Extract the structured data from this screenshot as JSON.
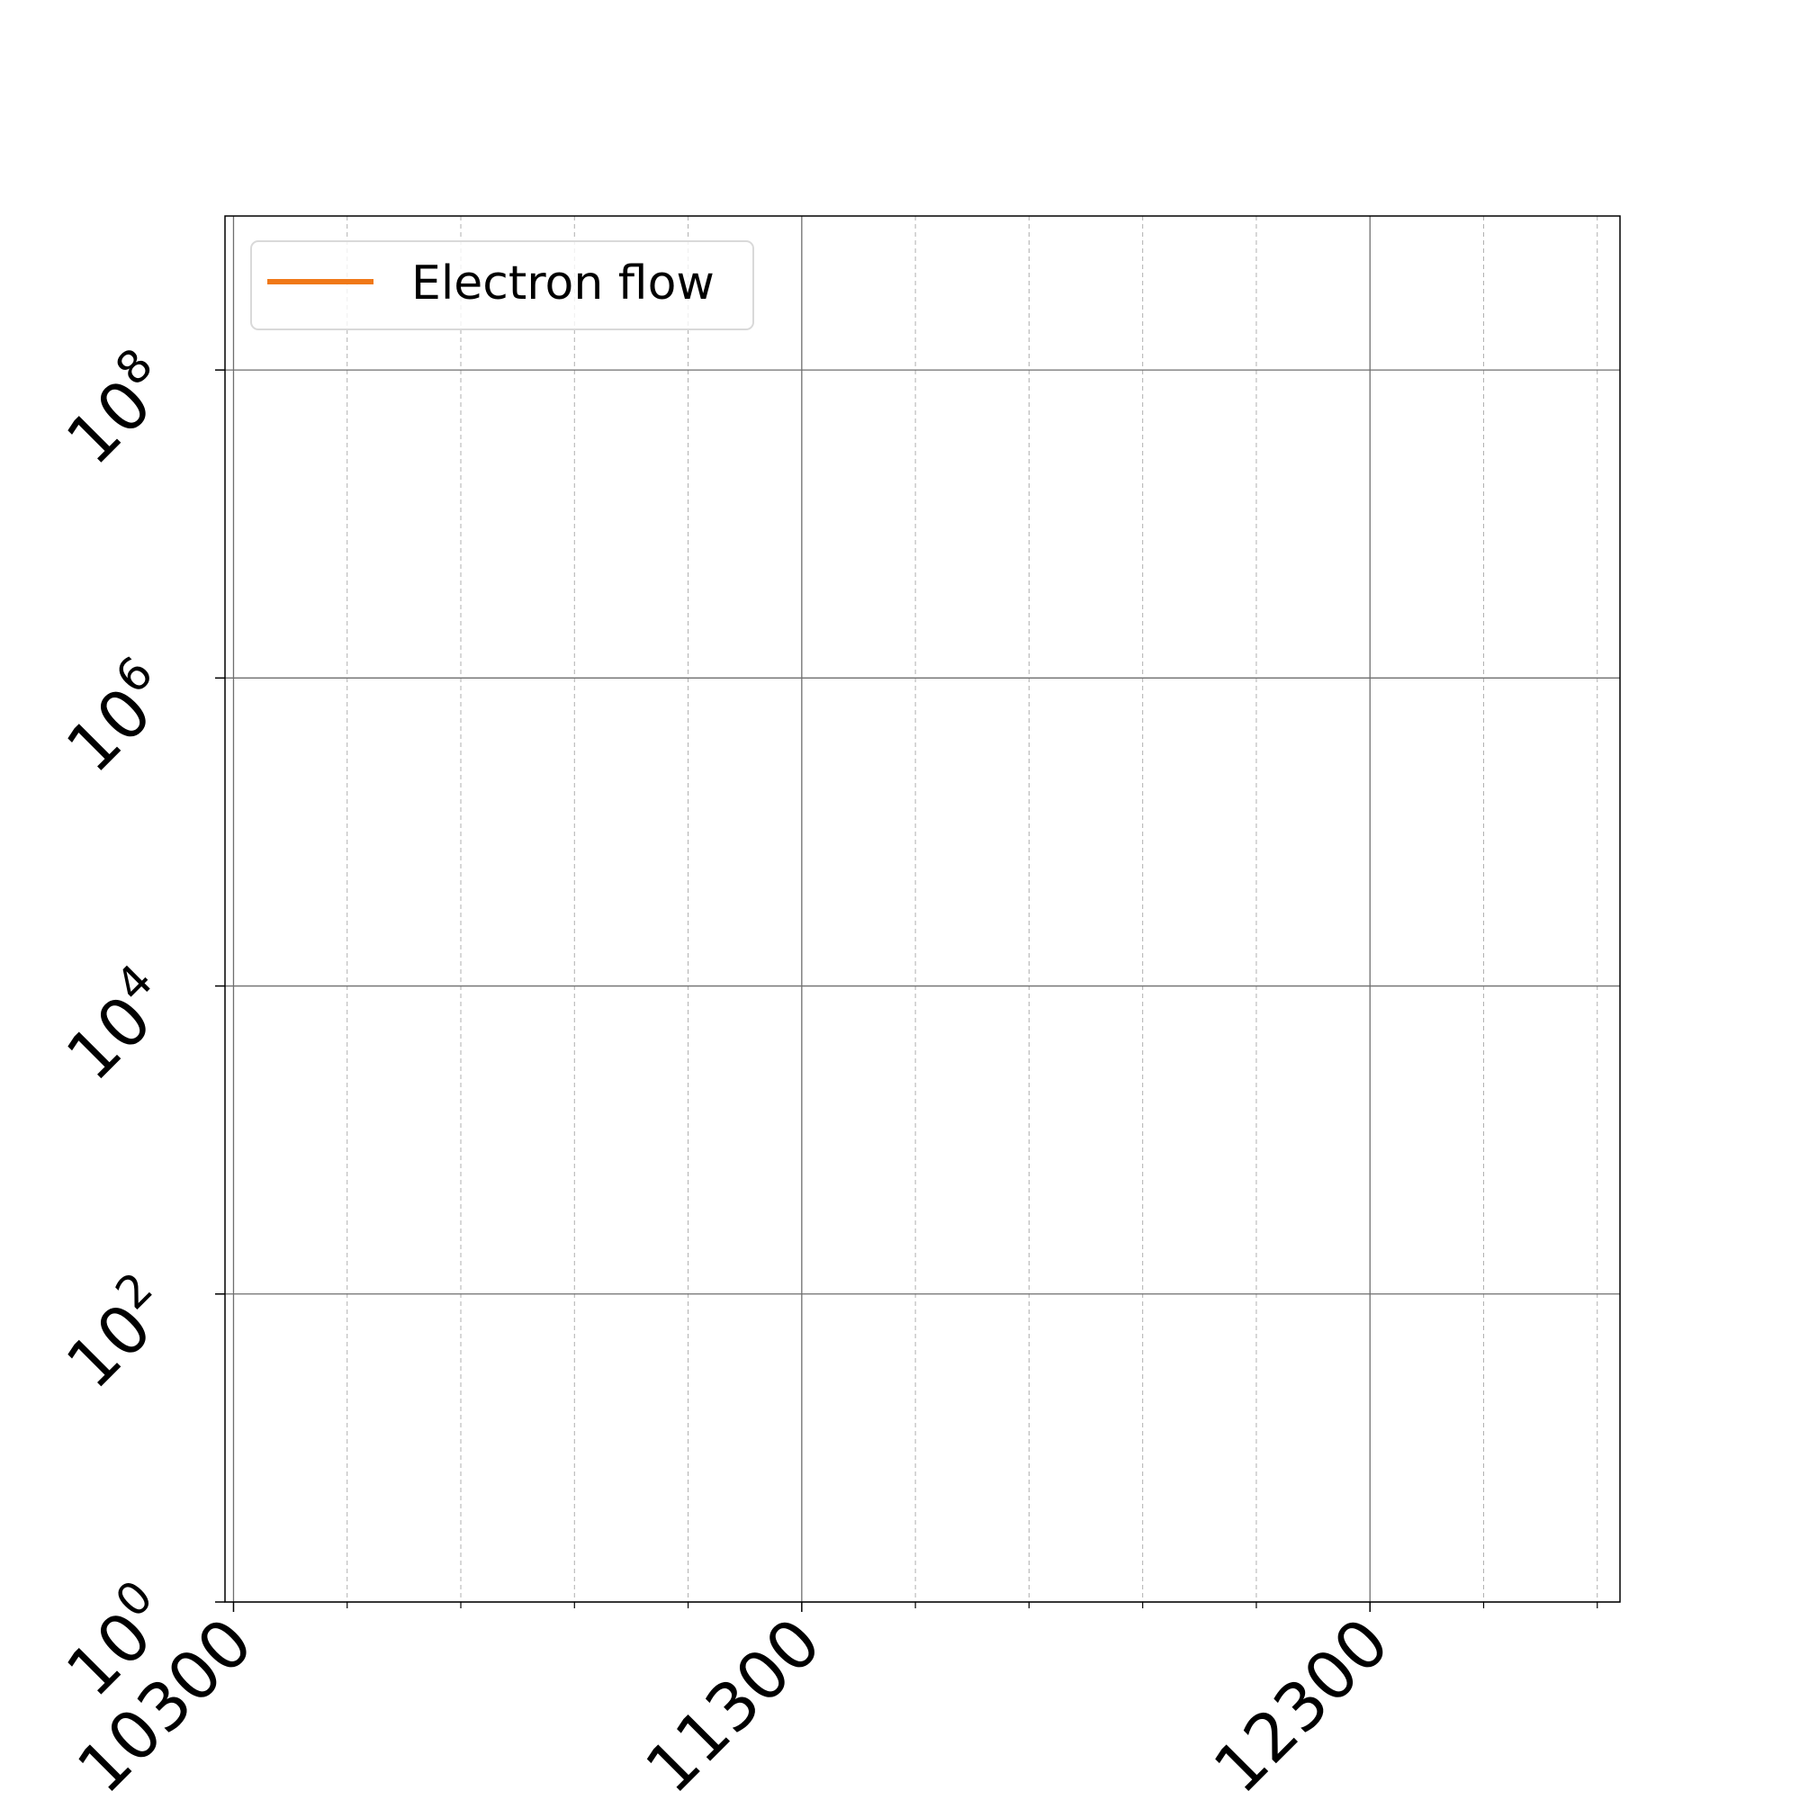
{
  "chart_data": {
    "type": "line",
    "title": "",
    "xlabel": "",
    "ylabel": "",
    "yscale": "log",
    "xlim": [
      10285,
      12740
    ],
    "ylim": [
      1,
      1000000000
    ],
    "x_ticks": [
      10300,
      11300,
      12300
    ],
    "x_tick_labels": [
      "10300",
      "11300",
      "12300"
    ],
    "x_minor_ticks": [
      10500,
      10700,
      10900,
      11100,
      11500,
      11700,
      11900,
      12100,
      12500,
      12700
    ],
    "y_ticks": [
      1,
      100,
      10000,
      1000000,
      100000000
    ],
    "y_tick_labels": [
      {
        "base": "10",
        "exp": "0"
      },
      {
        "base": "10",
        "exp": "2"
      },
      {
        "base": "10",
        "exp": "4"
      },
      {
        "base": "10",
        "exp": "6"
      },
      {
        "base": "10",
        "exp": "8"
      }
    ],
    "grid": true,
    "legend_position": "top-left",
    "series": [
      {
        "name": "Electron flow",
        "color": "#f07818",
        "x": [],
        "y": []
      }
    ]
  }
}
